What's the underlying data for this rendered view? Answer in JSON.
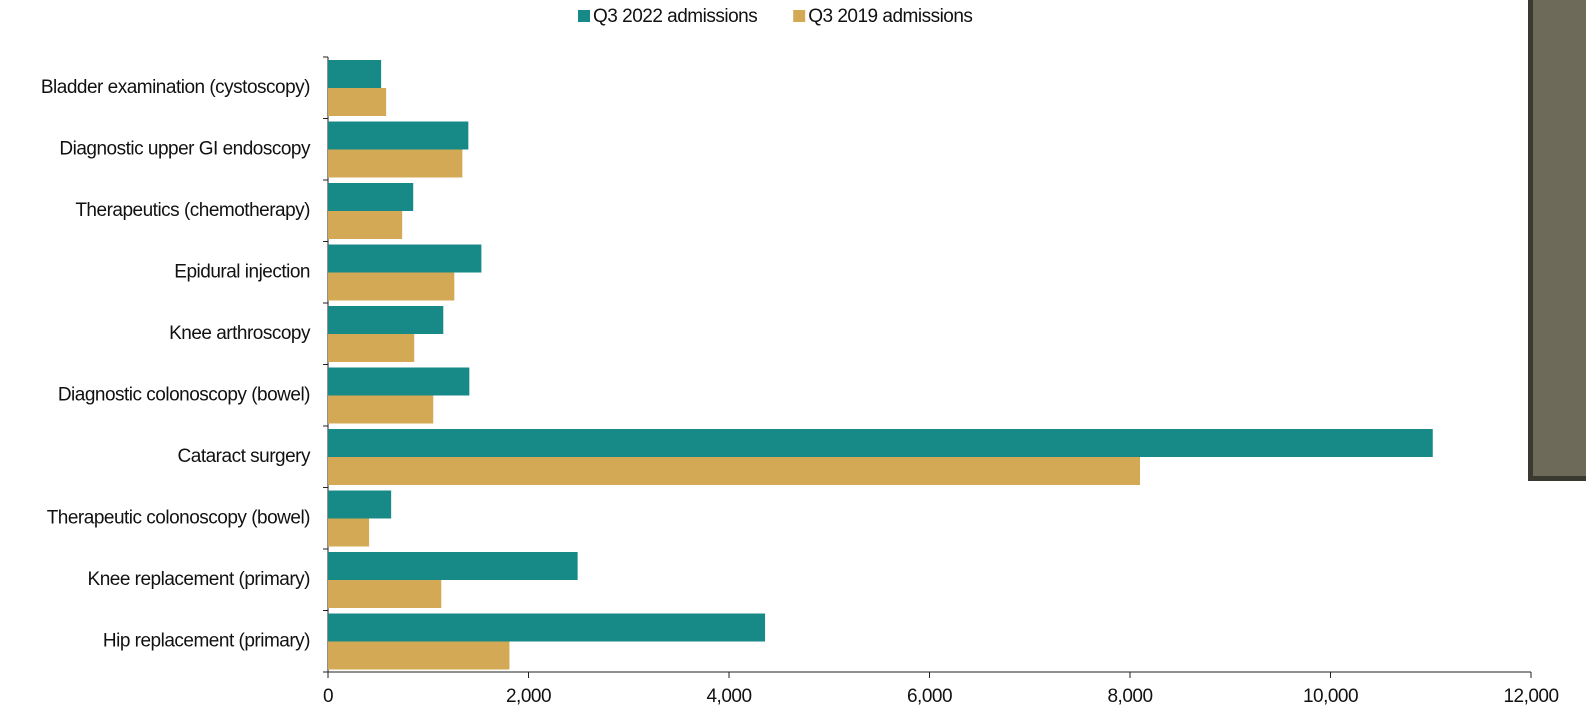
{
  "chart_data": {
    "type": "hbar",
    "categories": [
      "Bladder examination (cystoscopy)",
      "Diagnostic upper GI endoscopy",
      "Therapeutics (chemotherapy)",
      "Epidural injection",
      "Knee arthroscopy",
      "Diagnostic colonoscopy (bowel)",
      "Cataract surgery",
      "Therapeutic colonoscopy (bowel)",
      "Knee replacement (primary)",
      "Hip replacement (primary)"
    ],
    "series": [
      {
        "name": "Q3 2022 admissions",
        "color": "#178a87",
        "values": [
          530,
          1400,
          850,
          1530,
          1150,
          1410,
          11020,
          630,
          2490,
          4360
        ]
      },
      {
        "name": "Q3 2019 admissions",
        "color": "#d4a955",
        "values": [
          580,
          1340,
          740,
          1260,
          860,
          1050,
          8100,
          410,
          1130,
          1810
        ]
      }
    ],
    "xlim": [
      0,
      12000
    ],
    "xticks": [
      0,
      {
        "value": 2000,
        "label": "2,000"
      },
      {
        "value": 4000,
        "label": "4,000"
      },
      {
        "value": 6000,
        "label": "6,000"
      },
      {
        "value": 8000,
        "label": "8,000"
      },
      {
        "value": 10000,
        "label": "10,000"
      },
      {
        "value": 12000,
        "label": "12,000"
      }
    ],
    "grid": false,
    "legend": "top"
  }
}
